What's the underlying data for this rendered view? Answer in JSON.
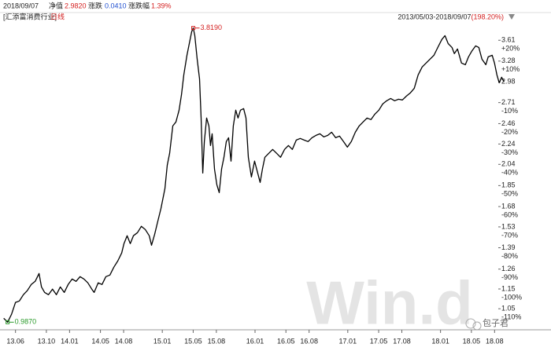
{
  "header": {
    "date": "2018/09/07",
    "nav_label": "净值",
    "nav": "2.9820",
    "change_label": "涨跌",
    "change": "0.0410",
    "pct_label": "涨跌幅",
    "pct": "1.39%"
  },
  "chart_data": {
    "type": "line",
    "title": "[汇添富消费行业]",
    "subtitle": "日线",
    "period": "2013/05/03-2018/09/07",
    "period_return": "(198.20%)",
    "color": "#000000",
    "log_y": true,
    "grid": false,
    "watermark": "Win.d",
    "badge": "包子君",
    "x": [
      2013.29,
      2013.332,
      2013.375,
      2013.417,
      2013.459,
      2013.502,
      2013.544,
      2013.587,
      2013.629,
      2013.671,
      2013.697,
      2013.731,
      2013.773,
      2013.816,
      2013.858,
      2013.9,
      2013.943,
      2013.985,
      2014.028,
      2014.07,
      2014.113,
      2014.155,
      2014.197,
      2014.24,
      2014.265,
      2014.308,
      2014.35,
      2014.392,
      2014.435,
      2014.477,
      2014.52,
      2014.562,
      2014.587,
      2014.621,
      2014.655,
      2014.689,
      2014.732,
      2014.774,
      2014.816,
      2014.859,
      2014.884,
      2014.918,
      2014.944,
      2014.986,
      2015.028,
      2015.054,
      2015.079,
      2015.113,
      2015.147,
      2015.181,
      2015.207,
      2015.232,
      2015.266,
      2015.291,
      2015.317,
      2015.334,
      2015.351,
      2015.376,
      2015.402,
      2015.419,
      2015.436,
      2015.453,
      2015.478,
      2015.503,
      2015.52,
      2015.537,
      2015.563,
      2015.588,
      2015.614,
      2015.639,
      2015.665,
      2015.69,
      2015.715,
      2015.741,
      2015.766,
      2015.792,
      2015.817,
      2015.843,
      2015.877,
      2015.902,
      2015.928,
      2015.961,
      2015.995,
      2016.029,
      2016.055,
      2016.08,
      2016.106,
      2016.148,
      2016.19,
      2016.233,
      2016.275,
      2016.318,
      2016.36,
      2016.402,
      2016.445,
      2016.487,
      2016.53,
      2016.572,
      2016.614,
      2016.657,
      2016.699,
      2016.742,
      2016.784,
      2016.826,
      2016.869,
      2016.911,
      2016.954,
      2016.996,
      2017.038,
      2017.081,
      2017.123,
      2017.165,
      2017.208,
      2017.25,
      2017.293,
      2017.335,
      2017.377,
      2017.42,
      2017.462,
      2017.505,
      2017.547,
      2017.589,
      2017.632,
      2017.674,
      2017.717,
      2017.759,
      2017.802,
      2017.844,
      2017.886,
      2017.929,
      2017.971,
      2018.014,
      2018.048,
      2018.082,
      2018.124,
      2018.149,
      2018.183,
      2018.226,
      2018.268,
      2018.302,
      2018.336,
      2018.379,
      2018.413,
      2018.447,
      2018.489,
      2018.514,
      2018.557,
      2018.582,
      2018.608,
      2018.633,
      2018.659,
      2018.685
    ],
    "values": [
      1.005,
      0.987,
      1.024,
      1.081,
      1.088,
      1.12,
      1.141,
      1.174,
      1.191,
      1.235,
      1.161,
      1.132,
      1.12,
      1.149,
      1.12,
      1.161,
      1.132,
      1.174,
      1.204,
      1.191,
      1.217,
      1.204,
      1.183,
      1.149,
      1.132,
      1.183,
      1.174,
      1.217,
      1.226,
      1.271,
      1.308,
      1.357,
      1.417,
      1.469,
      1.417,
      1.469,
      1.49,
      1.534,
      1.512,
      1.469,
      1.406,
      1.479,
      1.55,
      1.666,
      1.824,
      2.033,
      2.146,
      2.434,
      2.479,
      2.617,
      2.813,
      3.078,
      3.369,
      3.557,
      3.755,
      3.819,
      3.687,
      3.309,
      3.023,
      2.524,
      1.96,
      2.265,
      2.524,
      2.434,
      2.225,
      2.348,
      1.996,
      1.857,
      1.791,
      1.996,
      2.107,
      2.265,
      2.306,
      2.07,
      2.434,
      2.617,
      2.524,
      2.617,
      2.636,
      2.524,
      2.107,
      1.925,
      2.07,
      1.96,
      1.877,
      1.996,
      2.107,
      2.146,
      2.185,
      2.146,
      2.107,
      2.185,
      2.225,
      2.185,
      2.281,
      2.298,
      2.281,
      2.265,
      2.306,
      2.331,
      2.348,
      2.315,
      2.331,
      2.365,
      2.306,
      2.323,
      2.265,
      2.208,
      2.265,
      2.365,
      2.434,
      2.479,
      2.524,
      2.506,
      2.57,
      2.617,
      2.693,
      2.733,
      2.762,
      2.733,
      2.752,
      2.743,
      2.792,
      2.833,
      2.895,
      3.078,
      3.192,
      3.25,
      3.309,
      3.369,
      3.493,
      3.622,
      3.687,
      3.557,
      3.493,
      3.394,
      3.468,
      3.25,
      3.226,
      3.345,
      3.43,
      3.518,
      3.493,
      3.309,
      3.226,
      3.345,
      3.369,
      3.25,
      3.078,
      2.969,
      3.045,
      2.982
    ],
    "annotations": [
      {
        "text": "3.8190",
        "x": 2015.334,
        "y": 3.819,
        "color": "#d42020"
      },
      {
        "text": "0.9870",
        "x": 2013.332,
        "y": 0.987,
        "color": "#2a9a2a"
      }
    ],
    "xlim": [
      2013.25,
      2018.75
    ],
    "xticks": [
      {
        "value": 2013.417,
        "label": "13.06"
      },
      {
        "value": 2013.75,
        "label": "13.10"
      },
      {
        "value": 2014.0,
        "label": "14.01"
      },
      {
        "value": 2014.333,
        "label": "14.05"
      },
      {
        "value": 2014.583,
        "label": "14.08"
      },
      {
        "value": 2015.0,
        "label": "15.01"
      },
      {
        "value": 2015.333,
        "label": "15.05"
      },
      {
        "value": 2015.583,
        "label": "15.08"
      },
      {
        "value": 2016.0,
        "label": "16.01"
      },
      {
        "value": 2016.333,
        "label": "16.05"
      },
      {
        "value": 2016.583,
        "label": "16.08"
      },
      {
        "value": 2017.0,
        "label": "17.01"
      },
      {
        "value": 2017.333,
        "label": "17.05"
      },
      {
        "value": 2017.583,
        "label": "17.08"
      },
      {
        "value": 2018.0,
        "label": "18.01"
      },
      {
        "value": 2018.333,
        "label": "18.05"
      },
      {
        "value": 2018.583,
        "label": "18.08"
      }
    ],
    "ylim": [
      0.96,
      3.87
    ],
    "yticks": [
      3.61,
      3.28,
      2.98,
      2.71,
      2.46,
      2.24,
      2.04,
      1.85,
      1.68,
      1.53,
      1.39,
      1.26,
      1.15,
      1.05
    ],
    "ytick_change_labels": [
      "+20%",
      "+10%",
      null,
      "-10%",
      "-20%",
      "-30%",
      "-40%",
      "-50%",
      "-60%",
      "-70%",
      "-80%",
      "-90%",
      "-100%",
      "-110%"
    ]
  }
}
